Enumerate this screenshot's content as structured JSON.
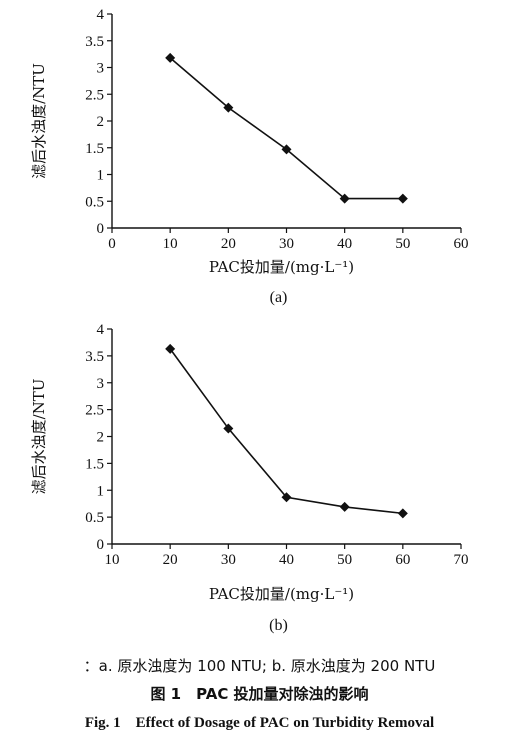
{
  "chart_data": [
    {
      "type": "line",
      "panel_label": "(a)",
      "xlabel": "PAC投加量/(mg·L⁻¹)",
      "ylabel": "滤后水浊度/NTU",
      "xlim": [
        0,
        60
      ],
      "ylim": [
        0,
        4
      ],
      "x_ticks": [
        "0",
        "10",
        "20",
        "30",
        "40",
        "50",
        "60"
      ],
      "y_ticks": [
        "0",
        "0.5",
        "1",
        "1.5",
        "2",
        "2.5",
        "3",
        "3.5",
        "4"
      ],
      "x": [
        10,
        20,
        30,
        40,
        50
      ],
      "values": [
        3.18,
        2.25,
        1.47,
        0.55,
        0.55
      ],
      "grid": false
    },
    {
      "type": "line",
      "panel_label": "(b)",
      "xlabel": "PAC投加量/(mg·L⁻¹)",
      "ylabel": "滤后水浊度/NTU",
      "xlim": [
        10,
        70
      ],
      "ylim": [
        0,
        4
      ],
      "x_ticks": [
        "10",
        "20",
        "30",
        "40",
        "50",
        "60",
        "70"
      ],
      "y_ticks": [
        "0",
        "0.5",
        "1",
        "1.5",
        "2",
        "2.5",
        "3",
        "3.5",
        "4"
      ],
      "x": [
        20,
        30,
        40,
        50,
        60
      ],
      "values": [
        3.63,
        2.15,
        0.87,
        0.69,
        0.57
      ],
      "grid": false
    }
  ],
  "caption": {
    "note": "：a. 原水浊度为 100 NTU; b. 原水浊度为 200 NTU",
    "title_cn": "图 1　PAC 投加量对除浊的影响",
    "title_en": "Fig. 1　Effect of Dosage of PAC on Turbidity Removal"
  }
}
